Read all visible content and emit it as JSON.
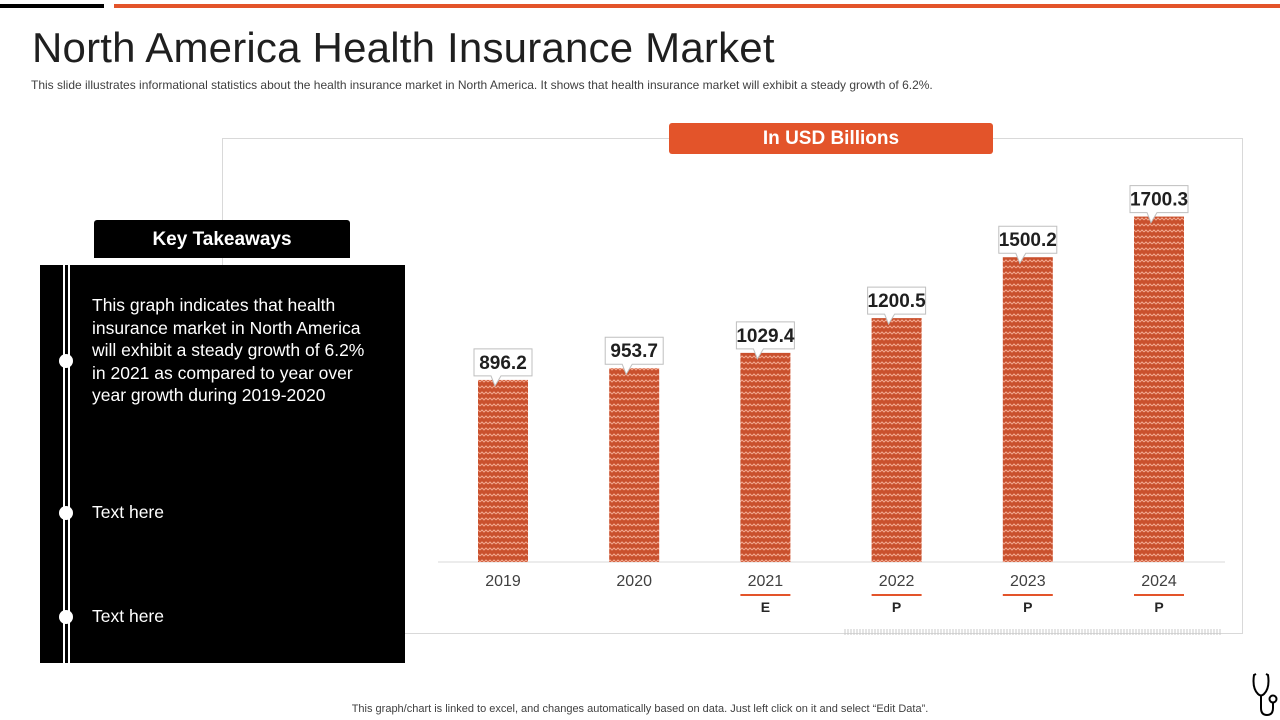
{
  "slide": {
    "title": "North America Health Insurance Market",
    "subtitle": "This slide illustrates informational statistics about the health insurance market in North America. It shows that health insurance market will exhibit a steady growth of 6.2%.",
    "footer_note": "This graph/chart is linked to excel, and changes automatically based on data. Just left click on it and select “Edit Data”.",
    "decor_icon": "stethoscope-icon"
  },
  "colors": {
    "accent": "#e3542a",
    "bar": "#c9502d",
    "bar_pattern": "#f2a88f",
    "panel": "#000000"
  },
  "chart_data": {
    "type": "bar",
    "unit_banner": "In USD Billions",
    "categories": [
      "2019",
      "2020",
      "2021",
      "2022",
      "2023",
      "2024"
    ],
    "values": [
      896.2,
      953.7,
      1029.4,
      1200.5,
      1500.2,
      1700.3
    ],
    "flags": [
      "",
      "",
      "E",
      "P",
      "P",
      "P"
    ],
    "ylim": [
      0,
      1900
    ],
    "grid": false,
    "legend": "none"
  },
  "key_takeaways": {
    "title": "Key Takeaways",
    "items": [
      "This graph indicates that health insurance market in North America will exhibit a steady growth of 6.2% in 2021 as compared to year over year growth during 2019-2020",
      "Text here",
      "Text here"
    ]
  }
}
